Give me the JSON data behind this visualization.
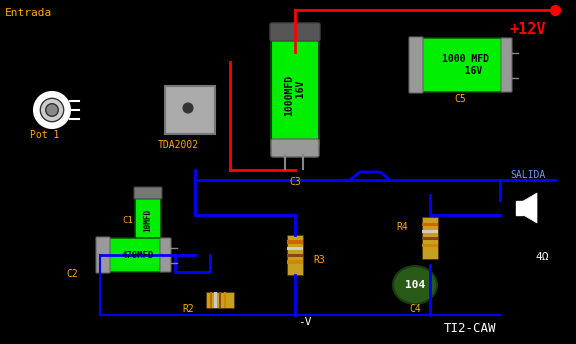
{
  "bg_color": "#000000",
  "title_text": "TI2-CAW",
  "entrada_label": "Entrada",
  "salida_label": "SALIDA",
  "plus12v_label": "+12V",
  "tda2002_label": "TDA2002",
  "pot1_label": "Pot 1",
  "c1_label": "C1",
  "c2_label": "C2",
  "c3_label": "C3",
  "c4_label": "C4",
  "c5_label": "C5",
  "r2_label": "R2",
  "r3_label": "R3",
  "r4_label": "R4",
  "neg_v_label": "-V",
  "cap_1000_label": "1000MFD\n16V",
  "cap_10_label": "10MFD",
  "cap_470_label": "470MFD",
  "ohm_label": "4Ω",
  "cap104_label": "104",
  "green_bright": "#00ee00",
  "green_dark": "#004400",
  "cap_gray": "#999999",
  "cap_gray_dark": "#666666",
  "wire_blue": "#0000ff",
  "wire_red": "#ff0000",
  "label_orange": "#ffaa00",
  "label_white": "#ffffff",
  "label_red": "#ff0000",
  "label_blue": "#6699ff"
}
